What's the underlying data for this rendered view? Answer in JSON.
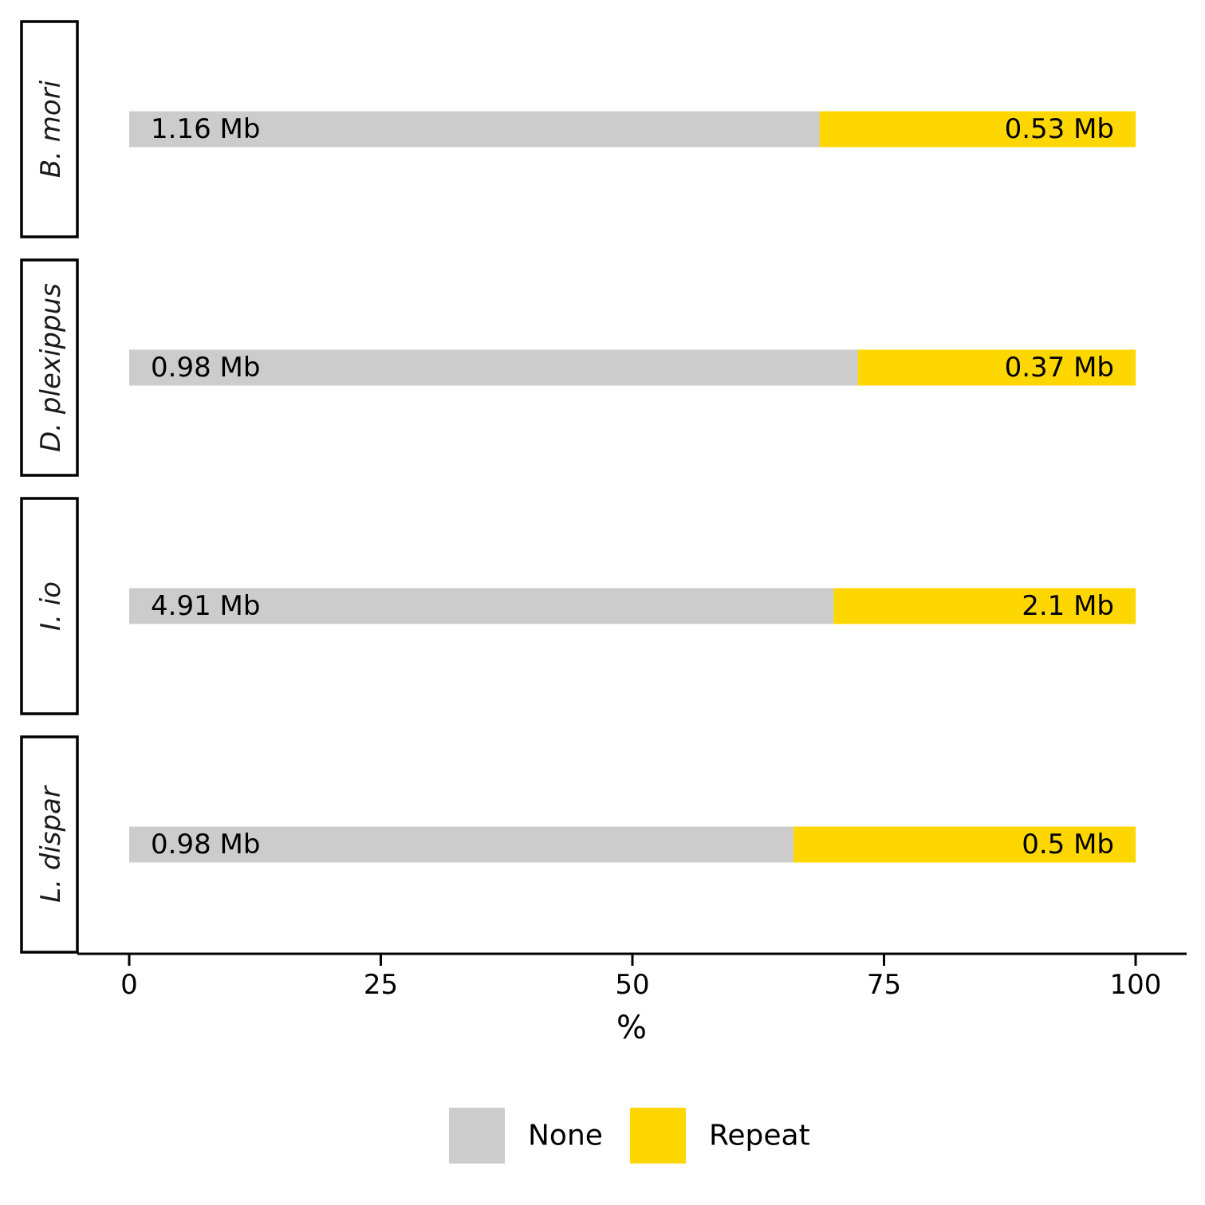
{
  "chart_data": {
    "type": "bar",
    "orientation": "horizontal",
    "stacked": true,
    "xlabel": "%",
    "xlim": [
      0,
      100
    ],
    "xticks": [
      0,
      25,
      50,
      75,
      100
    ],
    "grid": false,
    "legend_position": "bottom",
    "colors": {
      "None": "#cccccc",
      "Repeat": "#ffd700"
    },
    "categories": [
      "B. mori",
      "D. plexippus",
      "I. io",
      "L. dispar"
    ],
    "series": [
      {
        "name": "None",
        "values": [
          68.6,
          72.4,
          70.0,
          66.0
        ],
        "labels": [
          "1.16 Mb",
          "0.98 Mb",
          "4.91 Mb",
          "0.98 Mb"
        ]
      },
      {
        "name": "Repeat",
        "values": [
          31.4,
          27.6,
          30.0,
          34.0
        ],
        "labels": [
          "0.53 Mb",
          "0.37 Mb",
          "2.1 Mb",
          "0.5 Mb"
        ]
      }
    ]
  }
}
